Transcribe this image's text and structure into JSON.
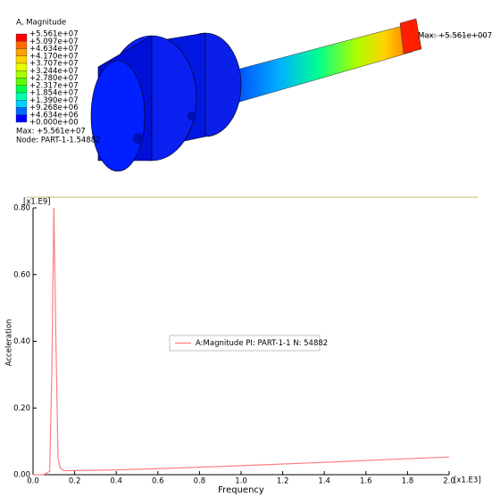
{
  "contour_legend": {
    "title": "A, Magnitude",
    "labels": [
      "+5.561e+07",
      "+5.097e+07",
      "+4.634e+07",
      "+4.170e+07",
      "+3.707e+07",
      "+3.244e+07",
      "+2.780e+07",
      "+2.317e+07",
      "+1.854e+07",
      "+1.390e+07",
      "+9.268e+06",
      "+4.634e+06",
      "+0.000e+00"
    ],
    "band_colors": [
      "#ff0000",
      "#ff6a00",
      "#ffa000",
      "#ffd400",
      "#e8ff00",
      "#a8ff00",
      "#5cff00",
      "#00ff4a",
      "#00ffb0",
      "#00d0ff",
      "#006bff",
      "#0000ff"
    ],
    "max_label": "Max: +5.561e+07",
    "node_label": "Node: PART-1-1.54882",
    "callout": "Max: +5.561e+007"
  },
  "chart_data": {
    "type": "line",
    "x_label": "Frequency",
    "y_label": "Acceleration",
    "x_multiplier": "[x1.E3]",
    "y_multiplier": "[x1.E9]",
    "x": [
      0,
      0.05,
      0.08,
      0.09,
      0.1,
      0.11,
      0.12,
      0.13,
      0.15,
      0.3,
      0.6,
      1.0,
      1.4,
      1.8,
      2.0
    ],
    "series": [
      {
        "name": "A:Magnitude PI: PART-1-1 N: 54882",
        "color": "#ff7f7f",
        "values": [
          0,
          0,
          0.01,
          0.3,
          0.8,
          0.4,
          0.05,
          0.02,
          0.012,
          0.013,
          0.018,
          0.027,
          0.037,
          0.048,
          0.053
        ]
      }
    ],
    "xlim": [
      0,
      2.0
    ],
    "xticks": [
      {
        "value": 0,
        "label": "0.0"
      },
      0.2,
      0.4,
      0.6,
      0.8,
      {
        "value": 1,
        "label": "1.0"
      },
      1.2,
      1.4,
      1.6,
      1.8,
      {
        "value": 2,
        "label": "2.0"
      }
    ],
    "ylim": [
      0,
      0.8
    ],
    "yticks": [
      {
        "value": 0,
        "label": "0.00"
      },
      {
        "value": 0.2,
        "label": "0.20"
      },
      {
        "value": 0.4,
        "label": "0.40"
      },
      {
        "value": 0.6,
        "label": "0.60"
      },
      {
        "value": 0.8,
        "label": "0.80"
      }
    ]
  }
}
